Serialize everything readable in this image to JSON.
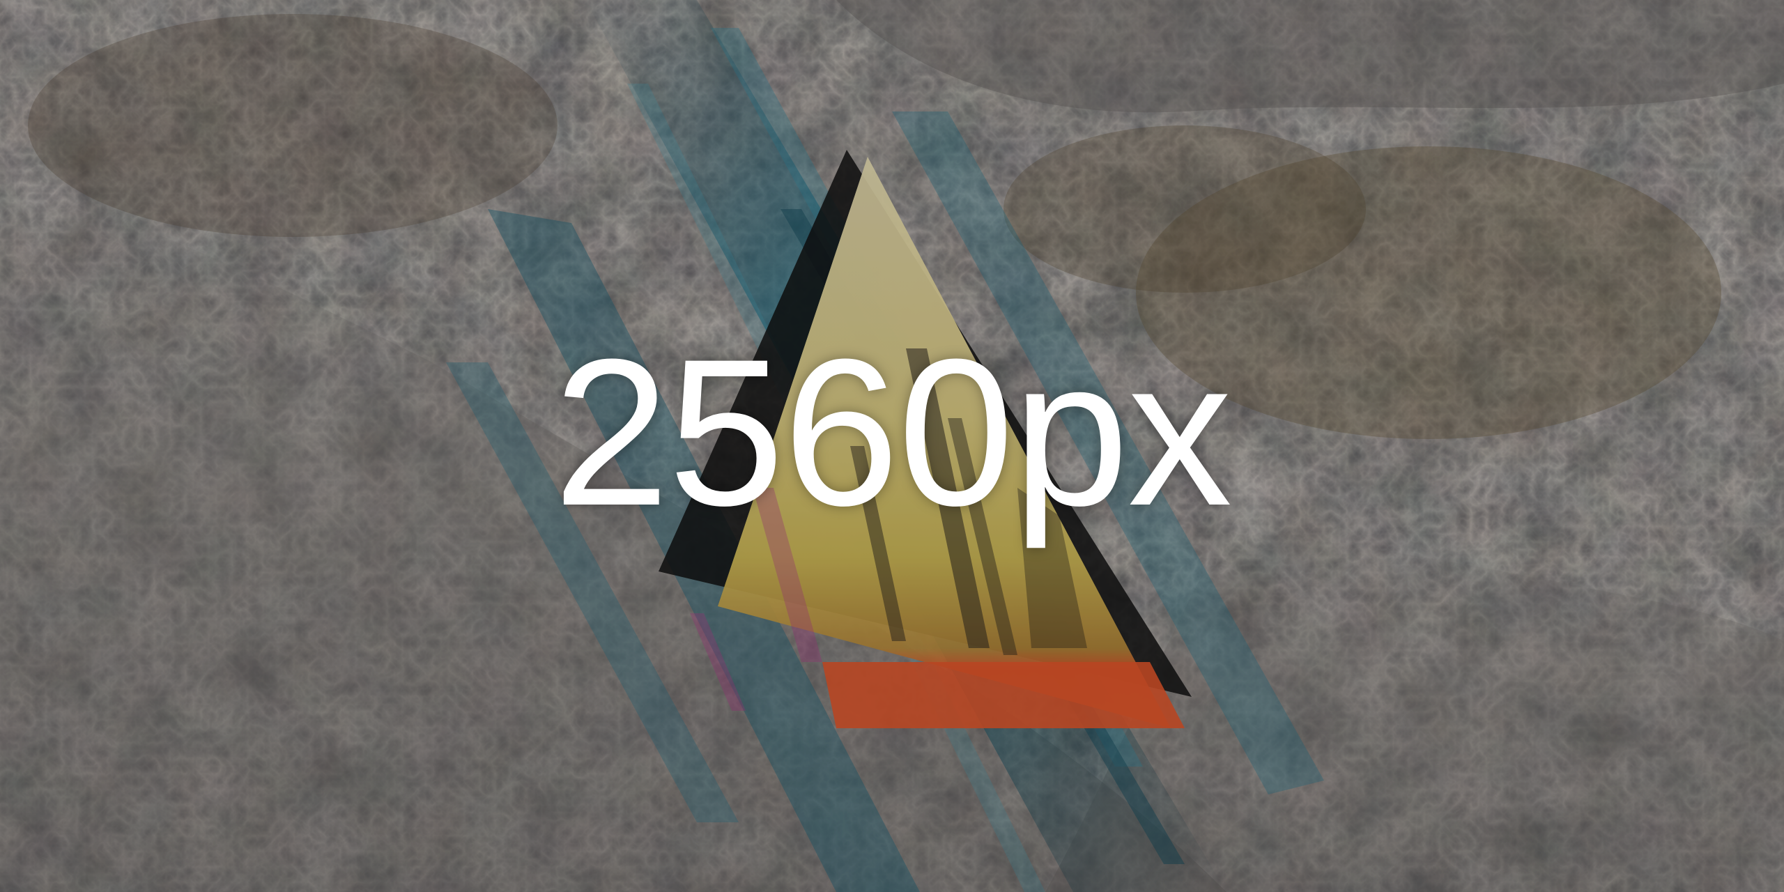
{
  "headline": {
    "text": "2560px",
    "color": "#ffffff"
  },
  "artwork": {
    "icon": "triangle-prism-logo",
    "palette": {
      "background": "#2b2a28",
      "rock_dark": "#1c1b1a",
      "rock_light": "#7a7470",
      "ochre": "#6b5a3a",
      "teal_streak": "#1f6f86",
      "cream": "#e8dcae",
      "yellow": "#e2c84a",
      "orange": "#e0552a",
      "magenta": "#b33a8a"
    }
  }
}
